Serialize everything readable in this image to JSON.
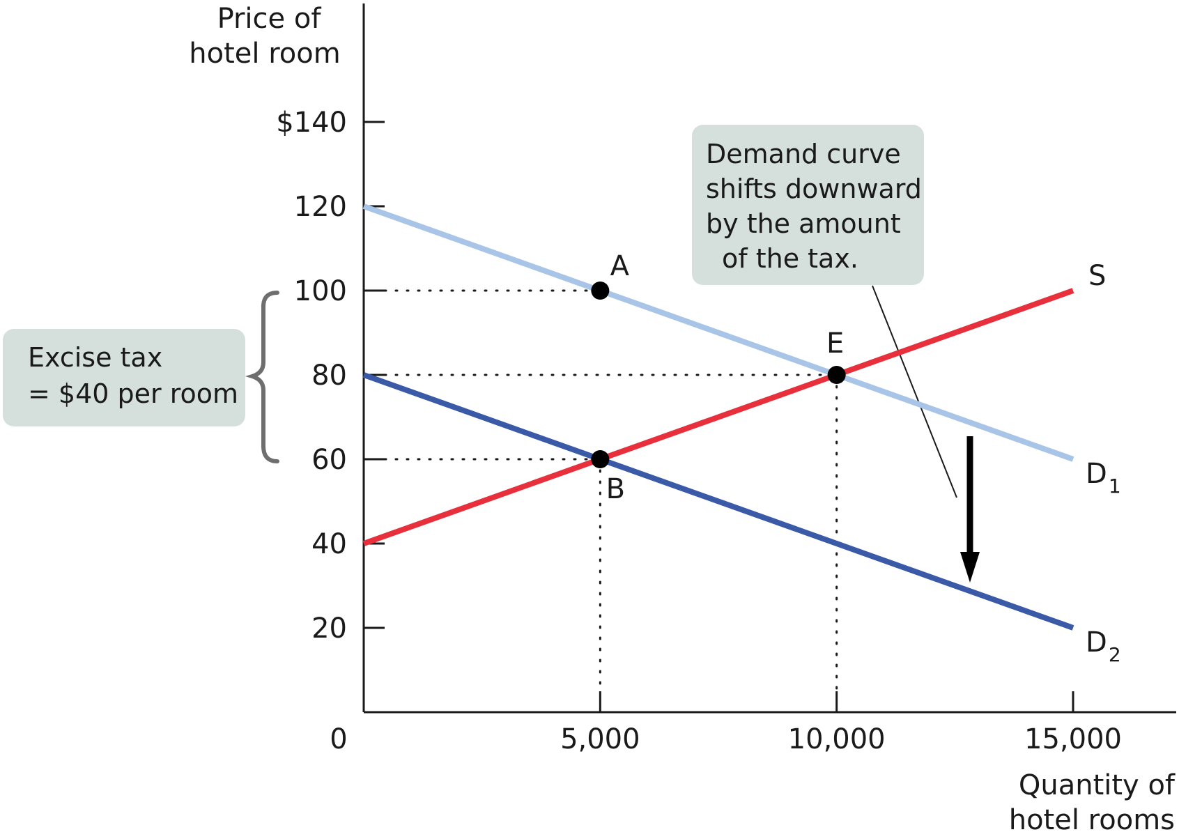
{
  "chart_data": {
    "type": "line",
    "title": "",
    "xlabel": [
      "Quantity of",
      "hotel rooms"
    ],
    "ylabel": [
      "Price of",
      "hotel room"
    ],
    "xlim": [
      0,
      17200
    ],
    "ylim": [
      0,
      150
    ],
    "x_ticks": [
      {
        "value": 0,
        "label": "0"
      },
      {
        "value": 5000,
        "label": "5,000"
      },
      {
        "value": 10000,
        "label": "10,000"
      },
      {
        "value": 15000,
        "label": "15,000"
      }
    ],
    "y_ticks": [
      {
        "value": 140,
        "label": "$140"
      },
      {
        "value": 120,
        "label": "120"
      },
      {
        "value": 100,
        "label": "100"
      },
      {
        "value": 80,
        "label": "80"
      },
      {
        "value": 60,
        "label": "60"
      },
      {
        "value": 40,
        "label": "40"
      },
      {
        "value": 20,
        "label": "20"
      }
    ],
    "series": [
      {
        "name": "D1",
        "label_main": "D",
        "label_sub": "1",
        "color": "#a8c4e6",
        "x": [
          0,
          15000
        ],
        "y": [
          120,
          60
        ]
      },
      {
        "name": "D2",
        "label_main": "D",
        "label_sub": "2",
        "color": "#3a5aa8",
        "x": [
          0,
          15000
        ],
        "y": [
          80,
          20
        ]
      },
      {
        "name": "S",
        "label_main": "S",
        "label_sub": "",
        "color": "#e8303c",
        "x": [
          0,
          15000
        ],
        "y": [
          40,
          100
        ]
      }
    ],
    "points": [
      {
        "name": "A",
        "x": 5000,
        "y": 100
      },
      {
        "name": "E",
        "x": 10000,
        "y": 80
      },
      {
        "name": "B",
        "x": 5000,
        "y": 60
      }
    ],
    "annotations": {
      "tax_box": [
        "Excise tax",
        "= $40 per room"
      ],
      "shift_box": [
        "Demand curve",
        "shifts downward",
        "by the amount",
        "of the tax."
      ]
    },
    "colors": {
      "axis": "#1a1a1a",
      "callout_fill": "#d5e0dc",
      "bracket": "#6e6e6e",
      "arrow": "#000000"
    }
  }
}
